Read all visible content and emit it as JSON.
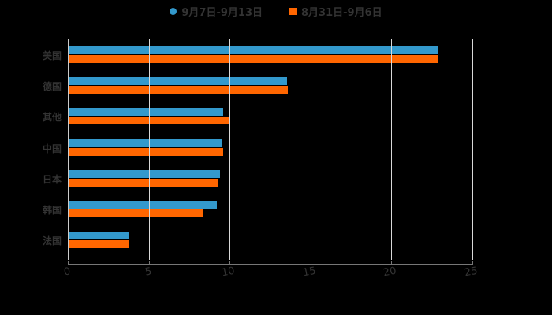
{
  "legend": {
    "items": [
      {
        "label": "9月7日-9月13日",
        "color": "#3399cc",
        "shape": "circle"
      },
      {
        "label": "8月31日-9月6日",
        "color": "#ff6600",
        "shape": "square"
      }
    ]
  },
  "axis": {
    "x_ticks": [
      "0",
      "5",
      "10",
      "15",
      "20",
      "25"
    ]
  },
  "categories": [
    "美国",
    "德国",
    "其他",
    "中国",
    "日本",
    "韩国",
    "法国"
  ],
  "chart_data": {
    "type": "bar",
    "orientation": "horizontal",
    "title": "",
    "xlabel": "",
    "ylabel": "",
    "categories": [
      "美国",
      "德国",
      "其他",
      "中国",
      "日本",
      "韩国",
      "法国"
    ],
    "series": [
      {
        "name": "9月7日-9月13日",
        "color": "#3399cc",
        "values": [
          22.85,
          13.55,
          9.6,
          9.5,
          9.4,
          9.2,
          3.75
        ]
      },
      {
        "name": "8月31日-9月6日",
        "color": "#ff6600",
        "values": [
          22.85,
          13.6,
          10.0,
          9.6,
          9.25,
          8.35,
          3.75
        ]
      }
    ],
    "xlim": [
      0,
      25
    ],
    "x_ticks": [
      0,
      5,
      10,
      15,
      20,
      25
    ],
    "grid": "vertical",
    "legend_position": "top"
  }
}
